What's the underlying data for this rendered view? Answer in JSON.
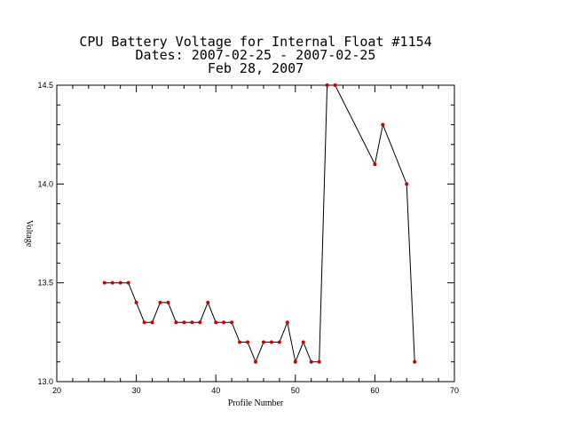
{
  "chart_data": {
    "type": "line",
    "title_lines": [
      "CPU Battery Voltage for Internal Float #1154",
      "Dates:  2007-02-25 -  2007-02-25",
      "Feb 28, 2007"
    ],
    "xlabel": "Profile Number",
    "ylabel": "Voltage",
    "xlim": [
      20,
      70
    ],
    "ylim": [
      13.0,
      14.5
    ],
    "x_ticks": [
      20,
      30,
      40,
      50,
      60,
      70
    ],
    "y_ticks": [
      13.0,
      13.5,
      14.0,
      14.5
    ],
    "x_tick_labels": [
      "20",
      "30",
      "40",
      "50",
      "60",
      "70"
    ],
    "y_tick_labels": [
      "13.0",
      "13.5",
      "14.0",
      "14.5"
    ],
    "grid": false,
    "line_color": "#000000",
    "marker_color": "#cc0000",
    "series": [
      {
        "x": [
          26,
          27,
          28,
          29,
          30,
          31,
          32,
          33,
          34,
          35,
          36,
          37,
          38,
          39,
          40,
          41,
          42,
          43,
          44,
          45,
          46,
          47,
          48,
          49,
          50,
          51,
          52,
          53,
          54,
          55,
          60,
          61,
          64,
          65
        ],
        "y": [
          13.5,
          13.5,
          13.5,
          13.5,
          13.4,
          13.3,
          13.3,
          13.4,
          13.4,
          13.3,
          13.3,
          13.3,
          13.3,
          13.4,
          13.3,
          13.3,
          13.3,
          13.2,
          13.2,
          13.1,
          13.2,
          13.2,
          13.2,
          13.3,
          13.1,
          13.2,
          13.1,
          13.1,
          14.5,
          14.5,
          14.1,
          14.3,
          14.0,
          13.1
        ]
      }
    ]
  }
}
